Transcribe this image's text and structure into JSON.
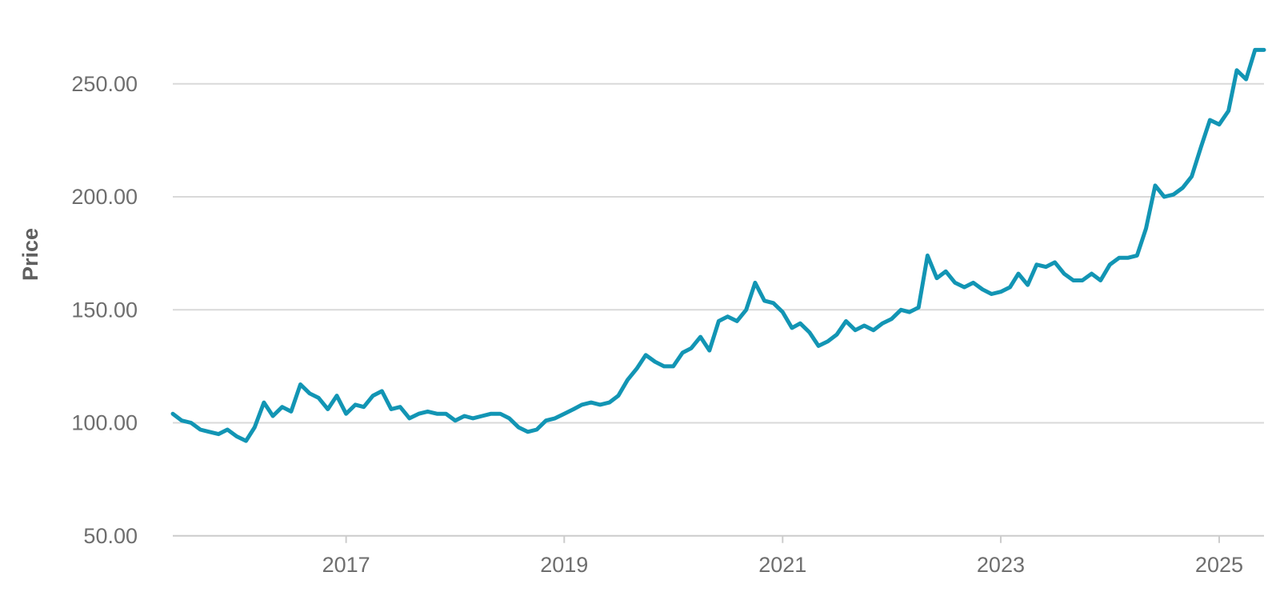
{
  "chart_data": {
    "type": "line",
    "title": "",
    "xlabel": "",
    "ylabel": "Price",
    "xlim": [
      "2015-06-01",
      "2025-05-31"
    ],
    "ylim": [
      40,
      280
    ],
    "y_ticks": [
      50,
      100,
      150,
      200,
      250
    ],
    "y_tick_labels": [
      "50.00",
      "100.00",
      "150.00",
      "200.00",
      "250.00"
    ],
    "x_ticks": [
      "2017-01-01",
      "2019-01-01",
      "2021-01-01",
      "2023-01-01",
      "2025-01-01"
    ],
    "x_tick_labels": [
      "2017",
      "2019",
      "2021",
      "2023",
      "2025"
    ],
    "grid": "horizontal",
    "series": [
      {
        "color": "#1295b4",
        "points": [
          [
            "2015-06-01",
            104
          ],
          [
            "2015-07-01",
            101
          ],
          [
            "2015-08-01",
            100
          ],
          [
            "2015-09-01",
            97
          ],
          [
            "2015-10-01",
            96
          ],
          [
            "2015-11-01",
            95
          ],
          [
            "2015-12-01",
            97
          ],
          [
            "2016-01-01",
            94
          ],
          [
            "2016-02-01",
            92
          ],
          [
            "2016-03-01",
            98
          ],
          [
            "2016-04-01",
            109
          ],
          [
            "2016-05-01",
            103
          ],
          [
            "2016-06-01",
            107
          ],
          [
            "2016-07-01",
            105
          ],
          [
            "2016-08-01",
            117
          ],
          [
            "2016-09-01",
            113
          ],
          [
            "2016-10-01",
            111
          ],
          [
            "2016-11-01",
            106
          ],
          [
            "2016-12-01",
            112
          ],
          [
            "2017-01-01",
            104
          ],
          [
            "2017-02-01",
            108
          ],
          [
            "2017-03-01",
            107
          ],
          [
            "2017-04-01",
            112
          ],
          [
            "2017-05-01",
            114
          ],
          [
            "2017-06-01",
            106
          ],
          [
            "2017-07-01",
            107
          ],
          [
            "2017-08-01",
            102
          ],
          [
            "2017-09-01",
            104
          ],
          [
            "2017-10-01",
            105
          ],
          [
            "2017-11-01",
            104
          ],
          [
            "2017-12-01",
            104
          ],
          [
            "2018-01-01",
            101
          ],
          [
            "2018-02-01",
            103
          ],
          [
            "2018-03-01",
            102
          ],
          [
            "2018-04-01",
            103
          ],
          [
            "2018-05-01",
            104
          ],
          [
            "2018-06-01",
            104
          ],
          [
            "2018-07-01",
            102
          ],
          [
            "2018-08-01",
            98
          ],
          [
            "2018-09-01",
            96
          ],
          [
            "2018-10-01",
            97
          ],
          [
            "2018-11-01",
            101
          ],
          [
            "2018-12-01",
            102
          ],
          [
            "2019-01-01",
            104
          ],
          [
            "2019-02-01",
            106
          ],
          [
            "2019-03-01",
            108
          ],
          [
            "2019-04-01",
            109
          ],
          [
            "2019-05-01",
            108
          ],
          [
            "2019-06-01",
            109
          ],
          [
            "2019-07-01",
            112
          ],
          [
            "2019-08-01",
            119
          ],
          [
            "2019-09-01",
            124
          ],
          [
            "2019-10-01",
            130
          ],
          [
            "2019-11-01",
            127
          ],
          [
            "2019-12-01",
            125
          ],
          [
            "2020-01-01",
            125
          ],
          [
            "2020-02-01",
            131
          ],
          [
            "2020-03-01",
            133
          ],
          [
            "2020-04-01",
            138
          ],
          [
            "2020-05-01",
            132
          ],
          [
            "2020-06-01",
            145
          ],
          [
            "2020-07-01",
            147
          ],
          [
            "2020-08-01",
            145
          ],
          [
            "2020-09-01",
            150
          ],
          [
            "2020-10-01",
            162
          ],
          [
            "2020-11-01",
            154
          ],
          [
            "2020-12-01",
            153
          ],
          [
            "2021-01-01",
            149
          ],
          [
            "2021-02-01",
            142
          ],
          [
            "2021-03-01",
            144
          ],
          [
            "2021-04-01",
            140
          ],
          [
            "2021-05-01",
            134
          ],
          [
            "2021-06-01",
            136
          ],
          [
            "2021-07-01",
            139
          ],
          [
            "2021-08-01",
            145
          ],
          [
            "2021-09-01",
            141
          ],
          [
            "2021-10-01",
            143
          ],
          [
            "2021-11-01",
            141
          ],
          [
            "2021-12-01",
            144
          ],
          [
            "2022-01-01",
            146
          ],
          [
            "2022-02-01",
            150
          ],
          [
            "2022-03-01",
            149
          ],
          [
            "2022-04-01",
            151
          ],
          [
            "2022-05-01",
            174
          ],
          [
            "2022-06-01",
            164
          ],
          [
            "2022-07-01",
            167
          ],
          [
            "2022-08-01",
            162
          ],
          [
            "2022-09-01",
            160
          ],
          [
            "2022-10-01",
            162
          ],
          [
            "2022-11-01",
            159
          ],
          [
            "2022-12-01",
            157
          ],
          [
            "2023-01-01",
            158
          ],
          [
            "2023-02-01",
            160
          ],
          [
            "2023-03-01",
            166
          ],
          [
            "2023-04-01",
            161
          ],
          [
            "2023-05-01",
            170
          ],
          [
            "2023-06-01",
            169
          ],
          [
            "2023-07-01",
            171
          ],
          [
            "2023-08-01",
            166
          ],
          [
            "2023-09-01",
            163
          ],
          [
            "2023-10-01",
            163
          ],
          [
            "2023-11-01",
            166
          ],
          [
            "2023-12-01",
            163
          ],
          [
            "2024-01-01",
            170
          ],
          [
            "2024-02-01",
            173
          ],
          [
            "2024-03-01",
            173
          ],
          [
            "2024-04-01",
            174
          ],
          [
            "2024-05-01",
            186
          ],
          [
            "2024-06-01",
            205
          ],
          [
            "2024-07-01",
            200
          ],
          [
            "2024-08-01",
            201
          ],
          [
            "2024-09-01",
            204
          ],
          [
            "2024-10-01",
            209
          ],
          [
            "2024-11-01",
            222
          ],
          [
            "2024-12-01",
            234
          ],
          [
            "2025-01-01",
            232
          ],
          [
            "2025-02-01",
            238
          ],
          [
            "2025-03-01",
            256
          ],
          [
            "2025-04-01",
            252
          ],
          [
            "2025-05-01",
            265
          ],
          [
            "2025-05-31",
            265
          ]
        ]
      }
    ]
  }
}
